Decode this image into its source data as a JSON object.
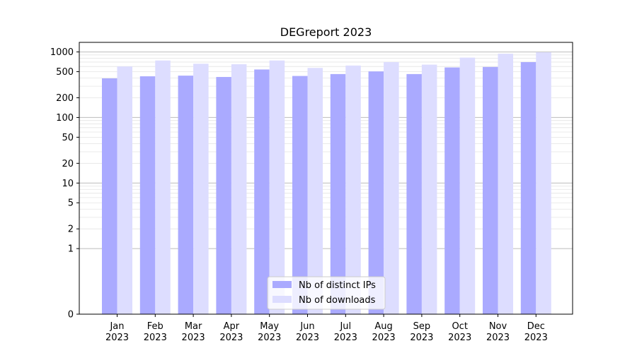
{
  "chart_data": {
    "type": "bar",
    "title": "DEGreport 2023",
    "xlabel": "",
    "ylabel": "",
    "yscale": "symlog",
    "ylim": [
      0,
      1400
    ],
    "yticks": [
      0,
      1,
      2,
      5,
      10,
      20,
      50,
      100,
      200,
      500,
      1000
    ],
    "ytick_labels": [
      "0",
      "1",
      "2",
      "5",
      "10",
      "20",
      "50",
      "100",
      "200",
      "500",
      "1000"
    ],
    "grid": true,
    "legend_position": "lower center",
    "categories": [
      [
        "Jan",
        "2023"
      ],
      [
        "Feb",
        "2023"
      ],
      [
        "Mar",
        "2023"
      ],
      [
        "Apr",
        "2023"
      ],
      [
        "May",
        "2023"
      ],
      [
        "Jun",
        "2023"
      ],
      [
        "Jul",
        "2023"
      ],
      [
        "Aug",
        "2023"
      ],
      [
        "Sep",
        "2023"
      ],
      [
        "Oct",
        "2023"
      ],
      [
        "Nov",
        "2023"
      ],
      [
        "Dec",
        "2023"
      ]
    ],
    "series": [
      {
        "name": "Nb of distinct IPs",
        "color": "#aaaaff",
        "values": [
          395,
          425,
          435,
          415,
          540,
          430,
          460,
          505,
          460,
          580,
          590,
          700
        ]
      },
      {
        "name": "Nb of downloads",
        "color": "#ddddff",
        "values": [
          600,
          740,
          660,
          650,
          740,
          570,
          620,
          700,
          640,
          820,
          940,
          990
        ]
      }
    ]
  }
}
